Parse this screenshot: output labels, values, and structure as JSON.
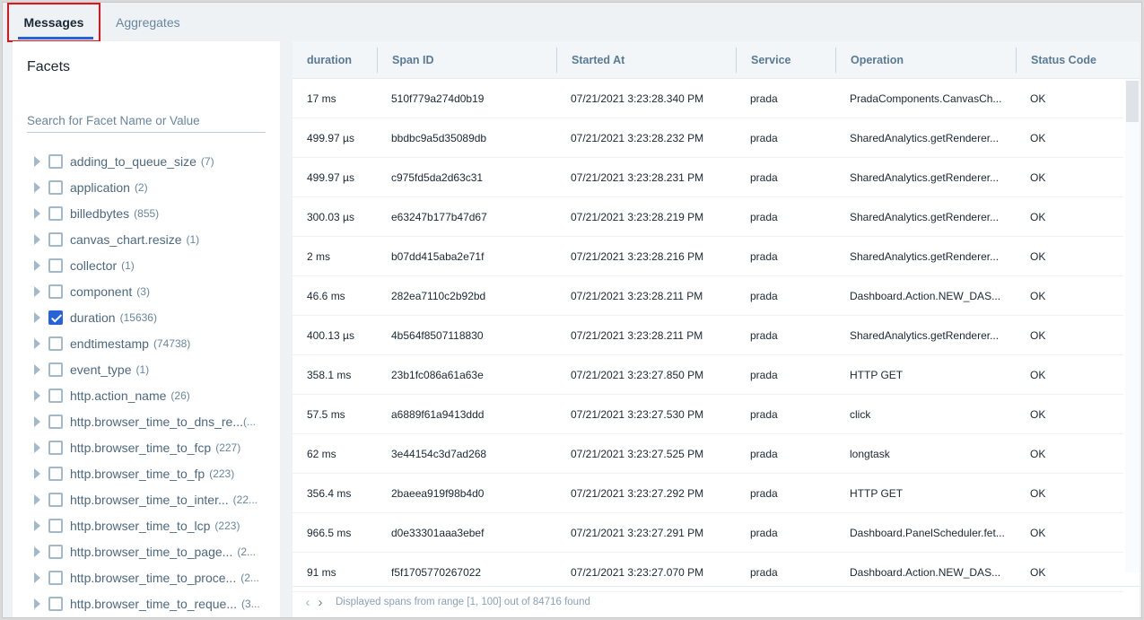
{
  "tabs": [
    {
      "label": "Messages",
      "active": true
    },
    {
      "label": "Aggregates",
      "active": false
    }
  ],
  "facets": {
    "title": "Facets",
    "search_placeholder": "Search for Facet Name or Value",
    "items": [
      {
        "name": "adding_to_queue_size",
        "count": "(7)",
        "checked": false
      },
      {
        "name": "application",
        "count": "(2)",
        "checked": false
      },
      {
        "name": "billedbytes",
        "count": "(855)",
        "checked": false
      },
      {
        "name": "canvas_chart.resize",
        "count": "(1)",
        "checked": false
      },
      {
        "name": "collector",
        "count": "(1)",
        "checked": false
      },
      {
        "name": "component",
        "count": "(3)",
        "checked": false
      },
      {
        "name": "duration",
        "count": "(15636)",
        "checked": true
      },
      {
        "name": "endtimestamp",
        "count": "(74738)",
        "checked": false
      },
      {
        "name": "event_type",
        "count": "(1)",
        "checked": false
      },
      {
        "name": "http.action_name",
        "count": "(26)",
        "checked": false
      },
      {
        "name": "http.browser_time_to_dns_re...",
        "count": "(...",
        "checked": false
      },
      {
        "name": "http.browser_time_to_fcp",
        "count": "(227)",
        "checked": false
      },
      {
        "name": "http.browser_time_to_fp",
        "count": "(223)",
        "checked": false
      },
      {
        "name": "http.browser_time_to_inter...",
        "count": "(22...",
        "checked": false
      },
      {
        "name": "http.browser_time_to_lcp",
        "count": "(223)",
        "checked": false
      },
      {
        "name": "http.browser_time_to_page...",
        "count": "(2...",
        "checked": false
      },
      {
        "name": "http.browser_time_to_proce...",
        "count": "(2...",
        "checked": false
      },
      {
        "name": "http.browser_time_to_reque...",
        "count": "(3...",
        "checked": false
      }
    ]
  },
  "table": {
    "columns": [
      "duration",
      "Span ID",
      "Started At",
      "Service",
      "Operation",
      "Status Code"
    ],
    "rows": [
      [
        "17 ms",
        "510f779a274d0b19",
        "07/21/2021 3:23:28.340 PM",
        "prada",
        "PradaComponents.CanvasCh...",
        "OK"
      ],
      [
        "499.97 µs",
        "bbdbc9a5d35089db",
        "07/21/2021 3:23:28.232 PM",
        "prada",
        "SharedAnalytics.getRenderer...",
        "OK"
      ],
      [
        "499.97 µs",
        "c975fd5da2d63c31",
        "07/21/2021 3:23:28.231 PM",
        "prada",
        "SharedAnalytics.getRenderer...",
        "OK"
      ],
      [
        "300.03 µs",
        "e63247b177b47d67",
        "07/21/2021 3:23:28.219 PM",
        "prada",
        "SharedAnalytics.getRenderer...",
        "OK"
      ],
      [
        "2 ms",
        "b07dd415aba2e71f",
        "07/21/2021 3:23:28.216 PM",
        "prada",
        "SharedAnalytics.getRenderer...",
        "OK"
      ],
      [
        "46.6 ms",
        "282ea7110c2b92bd",
        "07/21/2021 3:23:28.211 PM",
        "prada",
        "Dashboard.Action.NEW_DAS...",
        "OK"
      ],
      [
        "400.13 µs",
        "4b564f8507118830",
        "07/21/2021 3:23:28.211 PM",
        "prada",
        "SharedAnalytics.getRenderer...",
        "OK"
      ],
      [
        "358.1 ms",
        "23b1fc086a61a63e",
        "07/21/2021 3:23:27.850 PM",
        "prada",
        "HTTP GET",
        "OK"
      ],
      [
        "57.5 ms",
        "a6889f61a9413ddd",
        "07/21/2021 3:23:27.530 PM",
        "prada",
        "click",
        "OK"
      ],
      [
        "62 ms",
        "3e44154c3d7ad268",
        "07/21/2021 3:23:27.525 PM",
        "prada",
        "longtask",
        "OK"
      ],
      [
        "356.4 ms",
        "2baeea919f98b4d0",
        "07/21/2021 3:23:27.292 PM",
        "prada",
        "HTTP GET",
        "OK"
      ],
      [
        "966.5 ms",
        "d0e33301aaa3ebef",
        "07/21/2021 3:23:27.291 PM",
        "prada",
        "Dashboard.PanelScheduler.fet...",
        "OK"
      ],
      [
        "91 ms",
        "f5f1705770267022",
        "07/21/2021 3:23:27.070 PM",
        "prada",
        "Dashboard.Action.NEW_DAS...",
        "OK"
      ]
    ]
  },
  "footer": {
    "prev_icon": "chevron-left-icon",
    "next_icon": "chevron-right-icon",
    "status": "Displayed spans from range [1, 100] out of 84716 found"
  },
  "colors": {
    "accent": "#2563d6",
    "highlight_box": "#e0141a"
  }
}
